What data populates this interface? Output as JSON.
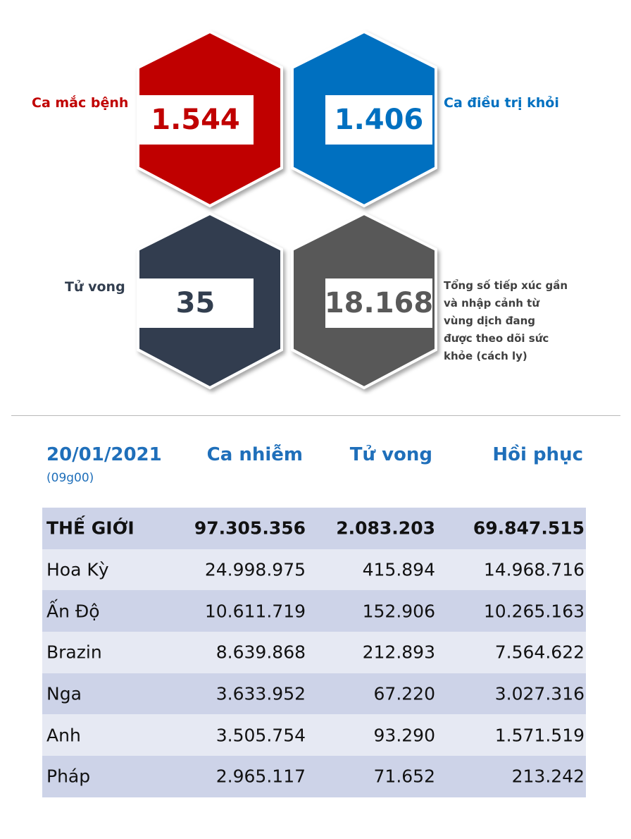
{
  "colors": {
    "cases": "#c00000",
    "recovered": "#0070c0",
    "deaths": "#323e4f",
    "monitored": "#595959",
    "header_blue": "#1f6fba",
    "row_dark": "#cdd3e8",
    "row_light": "#e6e9f3"
  },
  "stats": {
    "cases": {
      "label": "Ca mắc bệnh",
      "value": "1.544"
    },
    "recovered": {
      "label": "Ca điều trị khỏi",
      "value": "1.406"
    },
    "deaths": {
      "label": "Tử vong",
      "value": "35"
    },
    "monitored": {
      "value": "18.168",
      "label_lines": [
        "Tổng số tiếp xúc gần",
        "và nhập cảnh từ",
        "vùng dịch đang",
        "được theo dõi sức",
        "khỏe (cách ly)"
      ]
    }
  },
  "table": {
    "date": "20/01/2021",
    "time": "(09g00)",
    "headers": [
      "Ca nhiễm",
      "Tử vong",
      "Hồi phục"
    ],
    "rows": [
      {
        "country": "THẾ GIỚI",
        "cases": "97.305.356",
        "deaths": "2.083.203",
        "recovered": "69.847.515"
      },
      {
        "country": "Hoa Kỳ",
        "cases": "24.998.975",
        "deaths": "415.894",
        "recovered": "14.968.716"
      },
      {
        "country": "Ấn Độ",
        "cases": "10.611.719",
        "deaths": "152.906",
        "recovered": "10.265.163"
      },
      {
        "country": "Brazin",
        "cases": "8.639.868",
        "deaths": "212.893",
        "recovered": "7.564.622"
      },
      {
        "country": "Nga",
        "cases": "3.633.952",
        "deaths": "67.220",
        "recovered": "3.027.316"
      },
      {
        "country": "Anh",
        "cases": "3.505.754",
        "deaths": "93.290",
        "recovered": "1.571.519"
      },
      {
        "country": "Pháp",
        "cases": "2.965.117",
        "deaths": "71.652",
        "recovered": "213.242"
      }
    ]
  }
}
